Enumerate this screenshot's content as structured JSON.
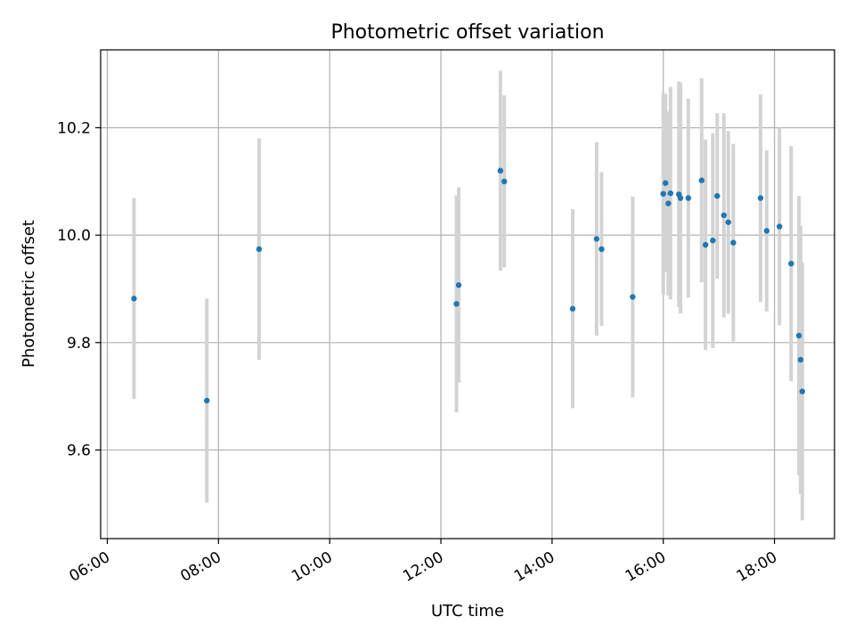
{
  "chart_data": {
    "type": "scatter",
    "title": "Photometric offset variation",
    "xlabel": "UTC time",
    "ylabel": "Photometric offset",
    "x_unit": "UTC hour",
    "xlim": [
      5.88,
      19.08
    ],
    "ylim": [
      9.435,
      10.345
    ],
    "grid": true,
    "x_ticks": [
      {
        "value": 6,
        "label": "06:00"
      },
      {
        "value": 8,
        "label": "08:00"
      },
      {
        "value": 10,
        "label": "10:00"
      },
      {
        "value": 12,
        "label": "12:00"
      },
      {
        "value": 14,
        "label": "14:00"
      },
      {
        "value": 16,
        "label": "16:00"
      },
      {
        "value": 18,
        "label": "18:00"
      }
    ],
    "y_ticks": [
      {
        "value": 9.6,
        "label": "9.6"
      },
      {
        "value": 9.8,
        "label": "9.8"
      },
      {
        "value": 10.0,
        "label": "10.0"
      },
      {
        "value": 10.2,
        "label": "10.2"
      }
    ],
    "marker_color": "#1f77b4",
    "errorbar_color": "#d3d3d3",
    "points": [
      {
        "x": 6.48,
        "y": 9.882,
        "yerr": 0.187
      },
      {
        "x": 7.79,
        "y": 9.692,
        "yerr": 0.19
      },
      {
        "x": 8.73,
        "y": 9.974,
        "yerr": 0.206
      },
      {
        "x": 12.28,
        "y": 9.872,
        "yerr": 0.202
      },
      {
        "x": 12.32,
        "y": 9.907,
        "yerr": 0.182
      },
      {
        "x": 13.07,
        "y": 10.12,
        "yerr": 0.186
      },
      {
        "x": 13.14,
        "y": 10.1,
        "yerr": 0.16
      },
      {
        "x": 14.37,
        "y": 9.863,
        "yerr": 0.185
      },
      {
        "x": 14.8,
        "y": 9.993,
        "yerr": 0.18
      },
      {
        "x": 14.89,
        "y": 9.974,
        "yerr": 0.143
      },
      {
        "x": 15.45,
        "y": 9.885,
        "yerr": 0.187
      },
      {
        "x": 16.0,
        "y": 10.077,
        "yerr": 0.188
      },
      {
        "x": 16.04,
        "y": 10.097,
        "yerr": 0.166
      },
      {
        "x": 16.09,
        "y": 10.059,
        "yerr": 0.171
      },
      {
        "x": 16.13,
        "y": 10.078,
        "yerr": 0.198
      },
      {
        "x": 16.28,
        "y": 10.076,
        "yerr": 0.21
      },
      {
        "x": 16.31,
        "y": 10.069,
        "yerr": 0.215
      },
      {
        "x": 16.45,
        "y": 10.069,
        "yerr": 0.185
      },
      {
        "x": 16.69,
        "y": 10.102,
        "yerr": 0.19
      },
      {
        "x": 16.76,
        "y": 9.982,
        "yerr": 0.196
      },
      {
        "x": 16.89,
        "y": 9.99,
        "yerr": 0.2
      },
      {
        "x": 16.97,
        "y": 10.073,
        "yerr": 0.154
      },
      {
        "x": 17.09,
        "y": 10.037,
        "yerr": 0.19
      },
      {
        "x": 17.17,
        "y": 10.024,
        "yerr": 0.17
      },
      {
        "x": 17.26,
        "y": 9.986,
        "yerr": 0.184
      },
      {
        "x": 17.75,
        "y": 10.069,
        "yerr": 0.193
      },
      {
        "x": 17.86,
        "y": 10.008,
        "yerr": 0.15
      },
      {
        "x": 18.09,
        "y": 10.016,
        "yerr": 0.184
      },
      {
        "x": 18.3,
        "y": 9.947,
        "yerr": 0.219
      },
      {
        "x": 18.44,
        "y": 9.813,
        "yerr": 0.26
      },
      {
        "x": 18.47,
        "y": 9.768,
        "yerr": 0.25
      },
      {
        "x": 18.5,
        "y": 9.709,
        "yerr": 0.24
      }
    ]
  }
}
